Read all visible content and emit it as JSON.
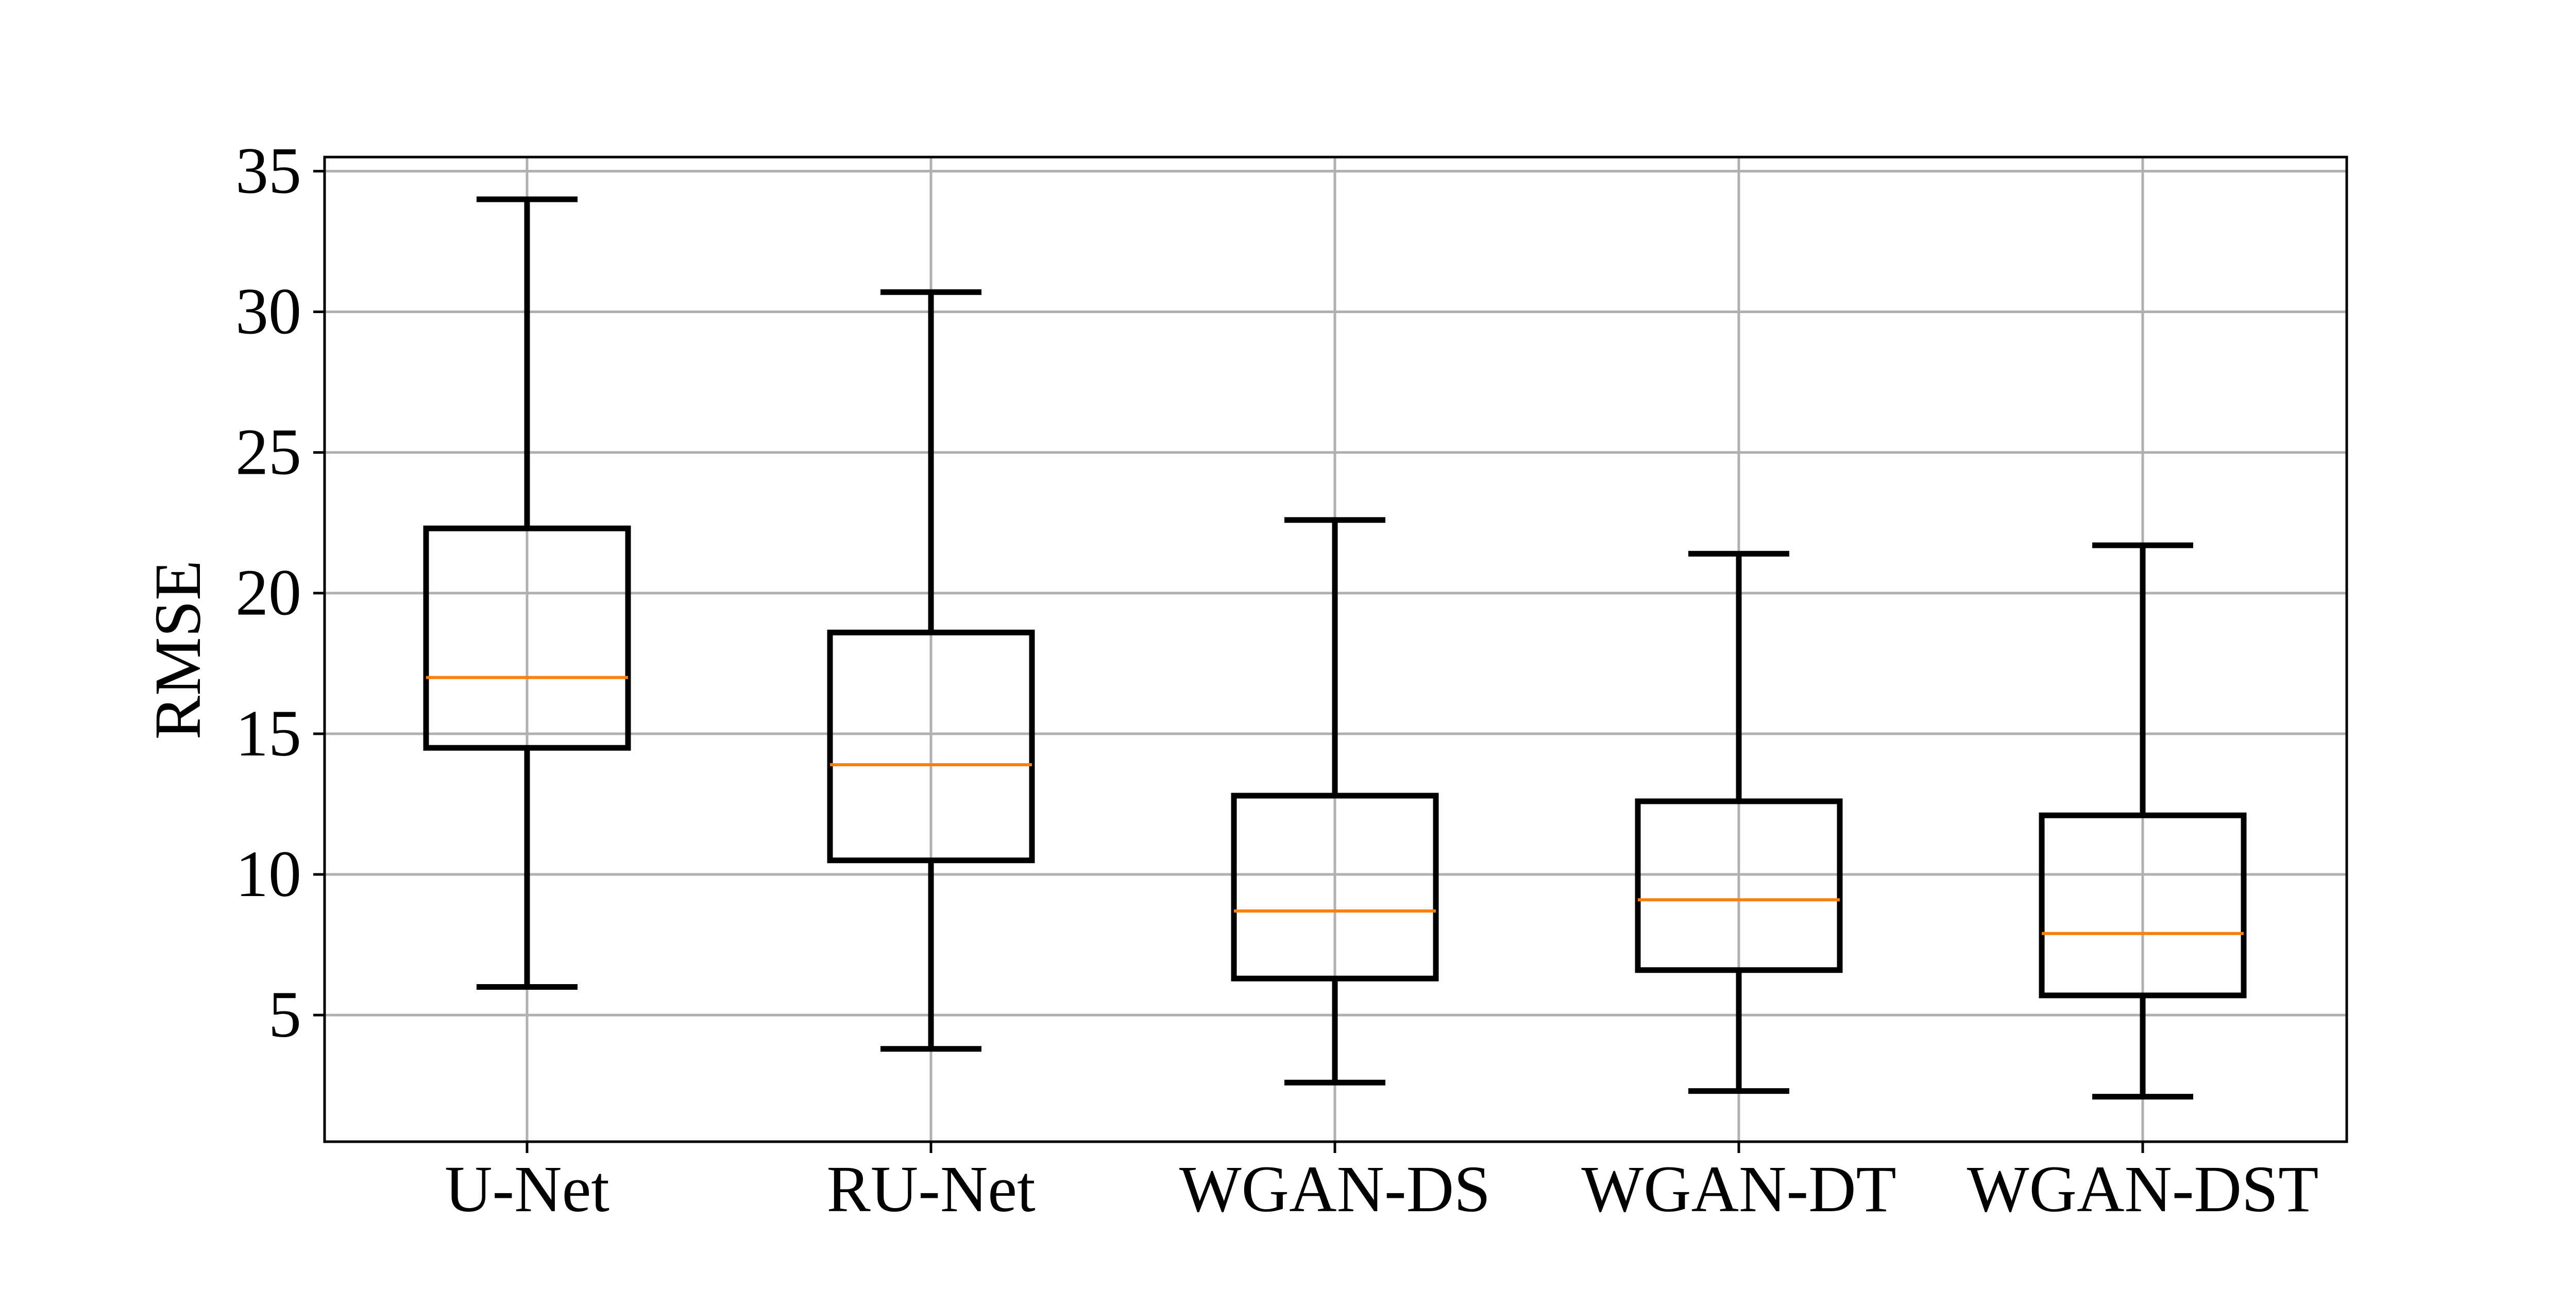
{
  "chart_data": {
    "type": "box",
    "categories": [
      "U-Net",
      "RU-Net",
      "WGAN-DS",
      "WGAN-DT",
      "WGAN-DST"
    ],
    "ylabel": "RMSE",
    "xlabel": "",
    "title": "",
    "ylim": [
      0.5,
      35.5
    ],
    "yticks": [
      5,
      10,
      15,
      20,
      25,
      30,
      35
    ],
    "grid": true,
    "boxes": [
      {
        "category": "U-Net",
        "whisker_low": 6.0,
        "q1": 14.5,
        "median": 17.0,
        "q3": 22.3,
        "whisker_high": 34.0
      },
      {
        "category": "RU-Net",
        "whisker_low": 3.8,
        "q1": 10.5,
        "median": 13.9,
        "q3": 18.6,
        "whisker_high": 30.7
      },
      {
        "category": "WGAN-DS",
        "whisker_low": 2.6,
        "q1": 6.3,
        "median": 8.7,
        "q3": 12.8,
        "whisker_high": 22.6
      },
      {
        "category": "WGAN-DT",
        "whisker_low": 2.3,
        "q1": 6.6,
        "median": 9.1,
        "q3": 12.6,
        "whisker_high": 21.4
      },
      {
        "category": "WGAN-DST",
        "whisker_low": 2.1,
        "q1": 5.7,
        "median": 7.9,
        "q3": 12.1,
        "whisker_high": 21.7
      }
    ],
    "colors": {
      "box": "#000000",
      "median": "#ff7f0e",
      "grid": "#b0b0b0",
      "axes": "#000000"
    }
  }
}
